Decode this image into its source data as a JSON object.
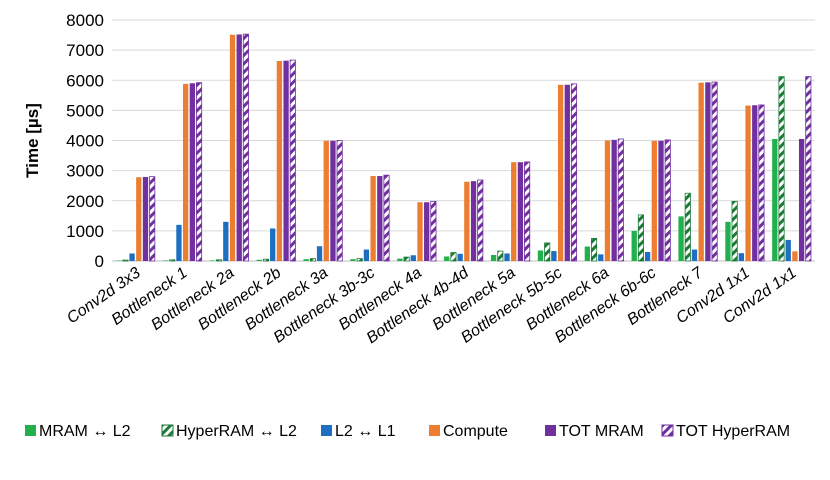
{
  "chart_data": {
    "type": "bar",
    "title": "",
    "xlabel": "",
    "ylabel": "Time [µs]",
    "ylim": [
      0,
      8000
    ],
    "yticks": [
      "0",
      "1000",
      "2000",
      "3000",
      "4000",
      "5000",
      "6000",
      "7000",
      "8000"
    ],
    "grid": true,
    "legend_position": "bottom",
    "categories": [
      "Conv2d 3x3",
      "Bottleneck 1",
      "Bottleneck 2a",
      "Bottleneck 2b",
      "Bottleneck 3a",
      "Bottleneck 3b-3c",
      "Bottleneck 4a",
      "Bottleneck 4b-4d",
      "Bottleneck 5a",
      "Bottleneck 5b-5c",
      "Bottleneck 6a",
      "Bottleneck 6b-6c",
      "Bottleneck 7",
      "Conv2d 1x1",
      "Conv2d 1x1"
    ],
    "series": [
      {
        "name": "MRAM ↔ L2",
        "color": "#21b04b",
        "pattern": "solid",
        "values": [
          10,
          20,
          20,
          40,
          60,
          60,
          80,
          150,
          200,
          350,
          480,
          1000,
          1480,
          1300,
          4050
        ]
      },
      {
        "name": "HyperRAM ↔ L2",
        "color": "#1b7a37",
        "pattern": "hatched",
        "values": [
          30,
          40,
          40,
          60,
          80,
          80,
          130,
          280,
          330,
          600,
          750,
          1530,
          2250,
          1980,
          6120
        ]
      },
      {
        "name": "L2 ↔ L1",
        "color": "#1e6fc2",
        "pattern": "solid",
        "values": [
          250,
          1200,
          1300,
          1080,
          490,
          380,
          190,
          240,
          250,
          330,
          220,
          300,
          380,
          260,
          700
        ]
      },
      {
        "name": "Compute",
        "color": "#ed7d31",
        "pattern": "solid",
        "values": [
          2780,
          5880,
          7510,
          6640,
          3990,
          2820,
          1950,
          2630,
          3280,
          5850,
          4000,
          3990,
          5920,
          5160,
          320
        ]
      },
      {
        "name": "TOT MRAM",
        "color": "#7030a0",
        "pattern": "solid",
        "values": [
          2790,
          5900,
          7520,
          6650,
          3990,
          2820,
          1950,
          2650,
          3280,
          5850,
          4020,
          3990,
          5930,
          5170,
          4050
        ]
      },
      {
        "name": "TOT HyperRAM",
        "color": "#7030a0",
        "pattern": "hatched",
        "values": [
          2800,
          5920,
          7530,
          6670,
          4000,
          2850,
          1980,
          2690,
          3290,
          5880,
          4050,
          4020,
          5940,
          5180,
          6120
        ]
      }
    ]
  }
}
